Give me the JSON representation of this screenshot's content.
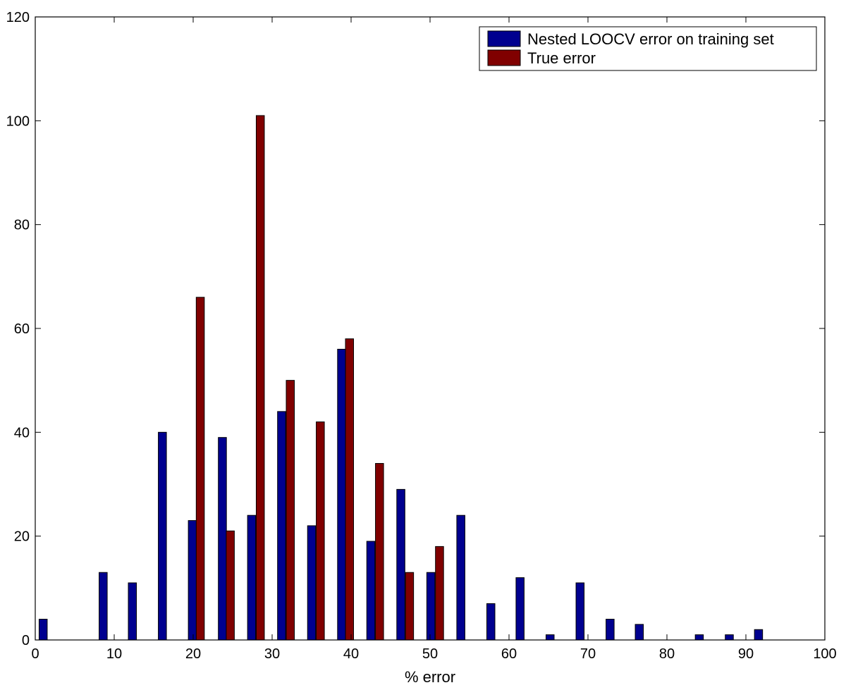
{
  "chart_data": {
    "type": "bar",
    "xlabel": "% error",
    "ylabel": "",
    "title": "",
    "xlim": [
      0,
      100
    ],
    "ylim": [
      0,
      120
    ],
    "xticks": [
      0,
      10,
      20,
      30,
      40,
      50,
      60,
      70,
      80,
      90,
      100
    ],
    "yticks": [
      0,
      20,
      40,
      60,
      80,
      100,
      120
    ],
    "grid": false,
    "legend_position": "top-right",
    "series": [
      {
        "name": "Nested LOOCV error on training set",
        "color": "#00008f",
        "x": [
          1.0,
          4.8,
          8.6,
          12.3,
          16.1,
          19.9,
          23.7,
          27.4,
          31.2,
          35.0,
          38.8,
          42.5,
          46.3,
          50.1,
          53.9,
          57.7,
          61.4,
          65.2,
          69.0,
          72.8,
          76.5,
          80.3,
          84.1,
          87.9,
          91.6,
          95.4
        ],
        "values": [
          4,
          0,
          13,
          11,
          40,
          23,
          39,
          24,
          44,
          22,
          56,
          19,
          29,
          13,
          24,
          7,
          12,
          1,
          11,
          4,
          3,
          0,
          1,
          1,
          2,
          0
        ]
      },
      {
        "name": "True error",
        "color": "#800000",
        "x": [
          20.9,
          24.7,
          28.5,
          32.3,
          36.1,
          39.8,
          43.6,
          47.4,
          51.2
        ],
        "values": [
          66,
          21,
          101,
          50,
          42,
          58,
          34,
          13,
          18
        ]
      }
    ]
  }
}
